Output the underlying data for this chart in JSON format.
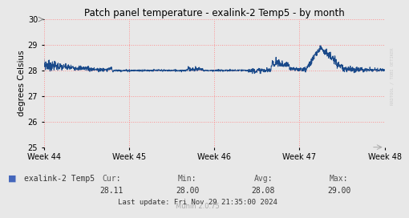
{
  "title": "Patch panel temperature - exalink-2 Temp5 - by month",
  "ylabel": "degrees Celsius",
  "ylim": [
    25,
    30
  ],
  "yticks": [
    25,
    26,
    27,
    28,
    29,
    30
  ],
  "line_color": "#1a4a8a",
  "bg_color": "#e8e8e8",
  "plot_bg_color": "#e8e8e8",
  "grid_color_h": "#ff8888",
  "grid_color_v": "#ff8888",
  "legend_label": "exalink-2 Temp5",
  "legend_color": "#4466bb",
  "cur": "28.11",
  "min_val": "28.00",
  "avg": "28.08",
  "max_val": "29.00",
  "last_update": "Last update: Fri Nov 29 21:35:00 2024",
  "munin_version": "Munin 2.0.75",
  "rrdbrand": "RRDTOOL / TOBI OETIKER",
  "week_labels": [
    "Week 44",
    "Week 45",
    "Week 46",
    "Week 47",
    "Week 48"
  ],
  "num_points": 1500,
  "base_temp": 28.0
}
